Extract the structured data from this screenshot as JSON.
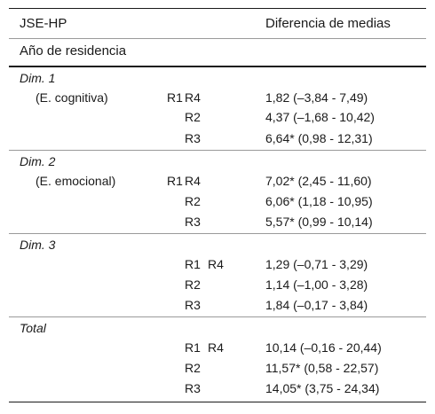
{
  "header": {
    "col1_line1": "JSE-HP",
    "col1_line2": "Año de residencia",
    "col3": "Diferencia de medias"
  },
  "groups": [
    {
      "title": "Dim. 1",
      "sub": "(E. cognitiva)",
      "rows": [
        {
          "comp_a": "R1",
          "comp_b": "R4",
          "value": "1,82 (–3,84 - 7,49)"
        },
        {
          "comp_a": "",
          "comp_b": "R2",
          "value": "4,37 (–1,68 - 10,42)"
        },
        {
          "comp_a": "",
          "comp_b": "R3",
          "value": "6,64* (0,98 - 12,31)"
        }
      ]
    },
    {
      "title": "Dim. 2",
      "sub": "(E. emocional)",
      "rows": [
        {
          "comp_a": "R1",
          "comp_b": "R4",
          "value": "7,02* (2,45 - 11,60)"
        },
        {
          "comp_a": "",
          "comp_b": "R2",
          "value": "6,06* (1,18 - 10,95)"
        },
        {
          "comp_a": "",
          "comp_b": "R3",
          "value": "5,57* (0,99 - 10,14)"
        }
      ]
    },
    {
      "title": "Dim. 3",
      "sub": "",
      "rows": [
        {
          "comp_a": "R1",
          "comp_b": "R4",
          "value": "1,29 (–0,71 - 3,29)"
        },
        {
          "comp_a": "",
          "comp_b": "R2",
          "value": "1,14 (–1,00 - 3,28)"
        },
        {
          "comp_a": "",
          "comp_b": "R3",
          "value": "1,84 (–0,17 - 3,84)"
        }
      ]
    },
    {
      "title": "Total",
      "sub": "",
      "rows": [
        {
          "comp_a": "R1",
          "comp_b": "R4",
          "value": "10,14 (–0,16 - 20,44)"
        },
        {
          "comp_a": "",
          "comp_b": "R2",
          "value": "11,57* (0,58 - 22,57)"
        },
        {
          "comp_a": "",
          "comp_b": "R3",
          "value": "14,05* (3,75 - 24,34)"
        }
      ]
    }
  ]
}
